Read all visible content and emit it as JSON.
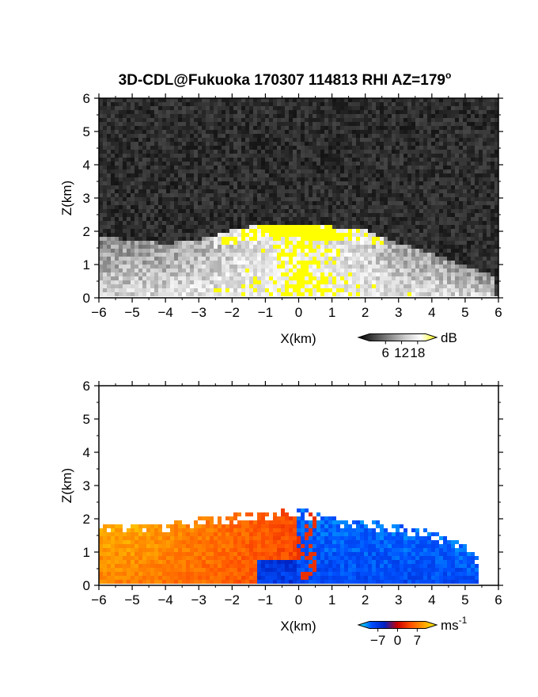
{
  "chart_data": [
    {
      "type": "heatmap",
      "title": "3D-CDL@Fukuoka 170307 114813 RHI AZ=179",
      "title_superscript": "o",
      "xlabel": "X(km)",
      "ylabel": "Z(km)",
      "xlim": [
        -6,
        6
      ],
      "ylim": [
        0,
        6
      ],
      "xticks": [
        "-6",
        "-5",
        "-4",
        "-3",
        "-2",
        "-1",
        "0",
        "1",
        "2",
        "3",
        "4",
        "5",
        "6"
      ],
      "yticks": [
        "0",
        "1",
        "2",
        "3",
        "4",
        "5",
        "6"
      ],
      "grid": false,
      "quantity": "backscatter intensity",
      "colorbar": {
        "unit": "dB",
        "ticks": [
          "6",
          "12",
          "18"
        ],
        "range": [
          0,
          21
        ],
        "colors": [
          "#000000",
          "#444444",
          "#888888",
          "#cccccc",
          "#ffffff",
          "#ffff00"
        ]
      },
      "echo_top_km": {
        "x": [
          -6,
          -5,
          -4,
          -3,
          -2,
          -1,
          0,
          1,
          2,
          3,
          4,
          5,
          5.9
        ],
        "z": [
          1.8,
          1.7,
          1.6,
          1.7,
          2.0,
          2.2,
          2.2,
          2.1,
          2.0,
          1.6,
          1.3,
          0.9,
          0.6
        ]
      },
      "saturated_region": {
        "value_db": 18,
        "color": "#ffff00"
      }
    },
    {
      "type": "heatmap",
      "xlabel": "X(km)",
      "ylabel": "Z(km)",
      "xlim": [
        -6,
        6
      ],
      "ylim": [
        0,
        6
      ],
      "xticks": [
        "-6",
        "-5",
        "-4",
        "-3",
        "-2",
        "-1",
        "0",
        "1",
        "2",
        "3",
        "4",
        "5",
        "6"
      ],
      "yticks": [
        "0",
        "1",
        "2",
        "3",
        "4",
        "5",
        "6"
      ],
      "grid": false,
      "quantity": "Doppler velocity",
      "colorbar": {
        "unit": "ms",
        "unit_superscript": "-1",
        "ticks": [
          "−7",
          "0",
          "7"
        ],
        "range": [
          -10,
          10
        ],
        "colors": [
          "#00ffff",
          "#0050ff",
          "#0020c0",
          "#cc0000",
          "#ff5000",
          "#ffa000",
          "#ffff00"
        ]
      },
      "echo_top_km": {
        "x": [
          -6,
          -5,
          -4,
          -3,
          -2,
          -1,
          0,
          1,
          2,
          3,
          4,
          5,
          5.4
        ],
        "z": [
          1.8,
          1.8,
          1.8,
          2.0,
          2.1,
          2.2,
          2.3,
          2.0,
          1.9,
          1.8,
          1.6,
          1.2,
          0.8
        ]
      },
      "velocity_sign_change_x_km": 0
    }
  ]
}
